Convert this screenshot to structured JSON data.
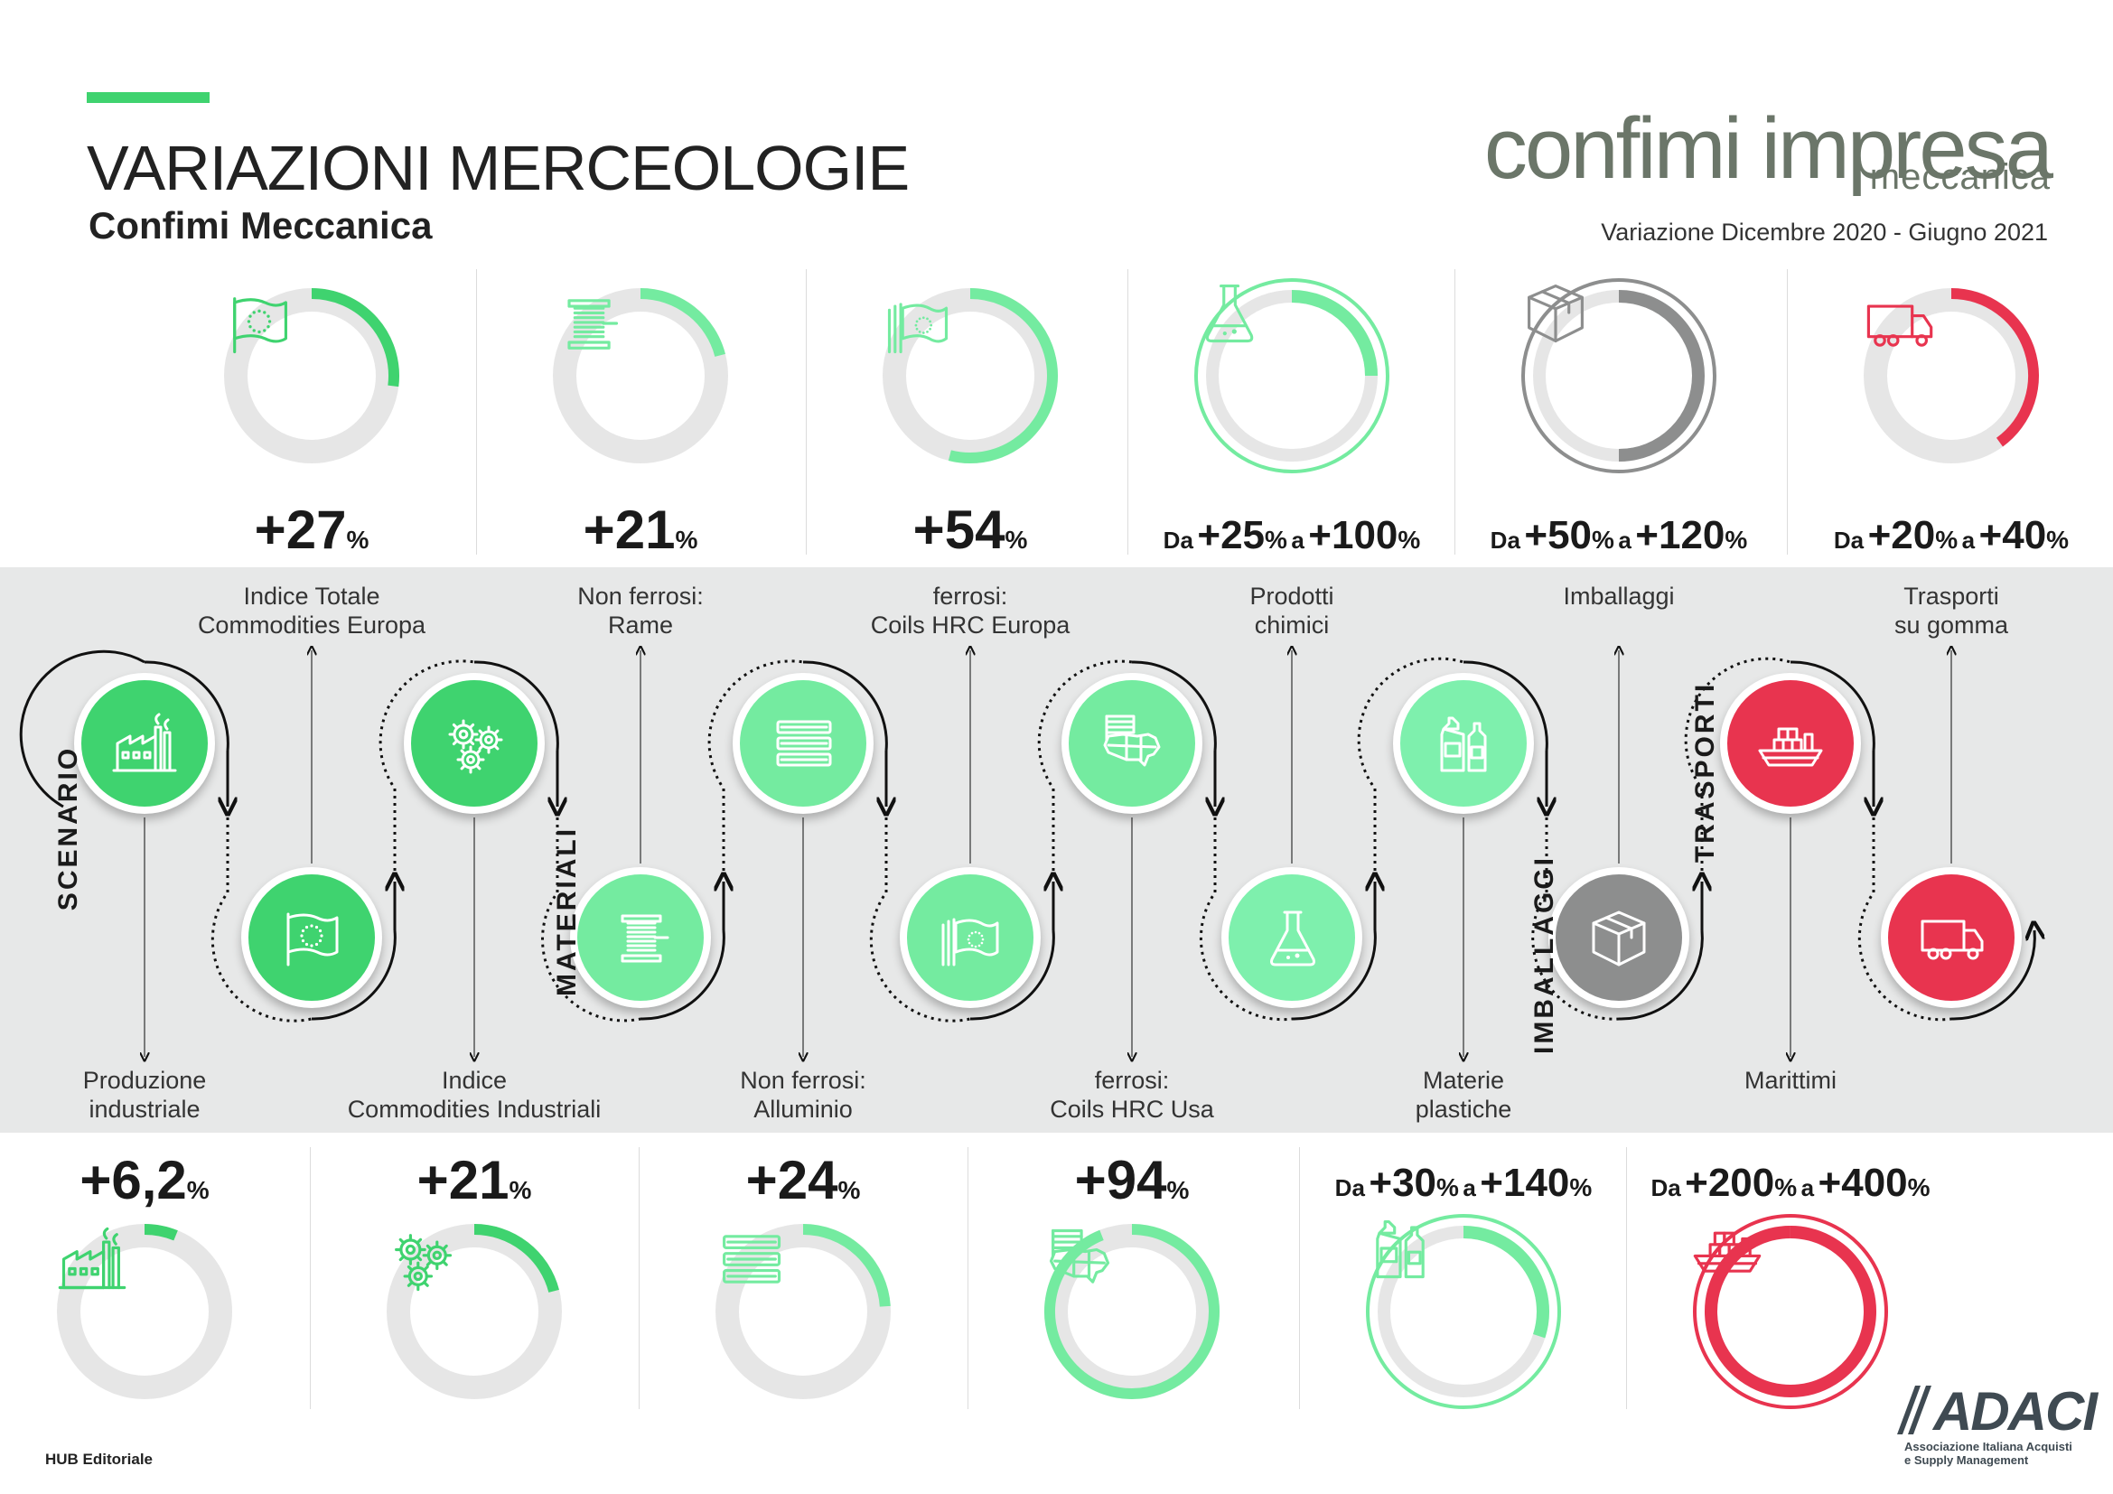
{
  "header": {
    "title": "VARIAZIONI MERCEOLOGIE",
    "subtitle": "Confimi Meccanica",
    "period": "Variazione Dicembre 2020 - Giugno 2021"
  },
  "logo": {
    "main": "confimi impresa",
    "sub": "meccanica"
  },
  "colors": {
    "accent_green": "#3fd36f",
    "light_green": "#74eba0",
    "mint": "#7ef0ad",
    "grey": "#8d8e8e",
    "red": "#e8344f",
    "track": "#e6e6e6"
  },
  "top_gauges": [
    {
      "id": "indice-totale",
      "icon": "eu-flag-icon",
      "prefix": "",
      "value": "+27",
      "unit": "%",
      "mid": "",
      "value2": "",
      "unit2": "",
      "level": 0.27,
      "color": "#3fd36f",
      "style": "thick"
    },
    {
      "id": "rame",
      "icon": "copper-coil-icon",
      "prefix": "",
      "value": "+21",
      "unit": "%",
      "mid": "",
      "value2": "",
      "unit2": "",
      "level": 0.21,
      "color": "#74eba0",
      "style": "thick"
    },
    {
      "id": "coils-europa",
      "icon": "steel-eu-flag-icon",
      "prefix": "",
      "value": "+54",
      "unit": "%",
      "mid": "",
      "value2": "",
      "unit2": "",
      "level": 0.54,
      "color": "#74eba0",
      "style": "thick"
    },
    {
      "id": "prodotti-chimici",
      "icon": "flask-icon",
      "prefix": "Da",
      "value": "+25",
      "unit": "%",
      "mid": "a",
      "value2": "+100",
      "unit2": "%",
      "level": 0.25,
      "level2": 1.0,
      "color": "#74eba0",
      "style": "double"
    },
    {
      "id": "imballaggi",
      "icon": "box-icon",
      "prefix": "Da",
      "value": "+50",
      "unit": "%",
      "mid": "a",
      "value2": "+120",
      "unit2": "%",
      "level": 0.5,
      "level2": 1.0,
      "color": "#8d8e8e",
      "style": "double"
    },
    {
      "id": "trasporti-gomma",
      "icon": "truck-icon",
      "prefix": "Da",
      "value": "+20",
      "unit": "%",
      "mid": "a",
      "value2": "+40",
      "unit2": "%",
      "level": 0.4,
      "color": "#e8344f",
      "style": "thick"
    }
  ],
  "bottom_gauges": [
    {
      "id": "produzione",
      "icon": "factory-icon",
      "prefix": "",
      "value": "+6,2",
      "unit": "%",
      "mid": "",
      "value2": "",
      "unit2": "",
      "level": 0.062,
      "color": "#3fd36f",
      "style": "thick"
    },
    {
      "id": "commodities-industriali",
      "icon": "gears-icon",
      "prefix": "",
      "value": "+21",
      "unit": "%",
      "mid": "",
      "value2": "",
      "unit2": "",
      "level": 0.21,
      "color": "#3fd36f",
      "style": "thick"
    },
    {
      "id": "alluminio",
      "icon": "aluminium-bars-icon",
      "prefix": "",
      "value": "+24",
      "unit": "%",
      "mid": "",
      "value2": "",
      "unit2": "",
      "level": 0.24,
      "color": "#74eba0",
      "style": "thick"
    },
    {
      "id": "coils-usa",
      "icon": "usa-map-icon",
      "prefix": "",
      "value": "+94",
      "unit": "%",
      "mid": "",
      "value2": "",
      "unit2": "",
      "level": 0.94,
      "color": "#74eba0",
      "style": "thick"
    },
    {
      "id": "materie-plastiche",
      "icon": "bottles-icon",
      "prefix": "Da",
      "value": "+30",
      "unit": "%",
      "mid": "a",
      "value2": "+140",
      "unit2": "%",
      "level": 0.3,
      "level2": 1.0,
      "color": "#74eba0",
      "style": "double"
    },
    {
      "id": "marittimi",
      "icon": "ship-icon",
      "prefix": "Da",
      "value": "+200",
      "unit": "%",
      "mid": "a",
      "value2": "+400",
      "unit2": "%",
      "level": 1.0,
      "level2": 1.0,
      "color": "#e8344f",
      "style": "double"
    }
  ],
  "timeline": {
    "sections": [
      "SCENARIO",
      "MATERIALI",
      "IMBALLAGGI",
      "TRASPORTI"
    ],
    "nodes": [
      {
        "id": "produzione",
        "icon": "factory-icon",
        "color": "#3fd36f",
        "label": "Produzione industriale",
        "label_l1": "Produzione",
        "label_l2": "industriale"
      },
      {
        "id": "indice-totale",
        "icon": "eu-flag-icon",
        "color": "#3fd36f",
        "label": "Indice Totale Commodities Europa",
        "label_l1": "Indice Totale",
        "label_l2": "Commodities Europa"
      },
      {
        "id": "commodities-industriali",
        "icon": "gears-icon",
        "color": "#3fd36f",
        "label": "Indice Commodities Industriali",
        "label_l1": "Indice",
        "label_l2": "Commodities Industriali"
      },
      {
        "id": "rame",
        "icon": "copper-coil-icon",
        "color": "#74eba0",
        "label": "Non ferrosi: Rame",
        "label_l1": "Non ferrosi:",
        "label_l2": "Rame"
      },
      {
        "id": "alluminio",
        "icon": "aluminium-bars-icon",
        "color": "#74eba0",
        "label": "Non ferrosi: Alluminio",
        "label_l1": "Non ferrosi:",
        "label_l2": "Alluminio"
      },
      {
        "id": "coils-europa",
        "icon": "steel-eu-flag-icon",
        "color": "#74eba0",
        "label": "ferrosi: Coils HRC Europa",
        "label_l1": "ferrosi:",
        "label_l2": "Coils HRC Europa"
      },
      {
        "id": "coils-usa",
        "icon": "usa-map-icon",
        "color": "#74eba0",
        "label": "ferrosi: Coils HRC Usa",
        "label_l1": "ferrosi:",
        "label_l2": "Coils HRC Usa"
      },
      {
        "id": "prodotti-chimici",
        "icon": "flask-icon",
        "color": "#7ef0ad",
        "label": "Prodotti chimici",
        "label_l1": "Prodotti",
        "label_l2": "chimici"
      },
      {
        "id": "materie-plastiche",
        "icon": "bottles-icon",
        "color": "#7ef0ad",
        "label": "Materie plastiche",
        "label_l1": "Materie",
        "label_l2": "plastiche"
      },
      {
        "id": "imballaggi",
        "icon": "box-icon",
        "color": "#8d8e8e",
        "label": "Imballaggi",
        "label_l1": "Imballaggi",
        "label_l2": ""
      },
      {
        "id": "marittimi",
        "icon": "ship-icon",
        "color": "#e8344f",
        "label": "Marittimi",
        "label_l1": "",
        "label_l2": "Marittimi"
      },
      {
        "id": "trasporti-gomma",
        "icon": "truck-icon",
        "color": "#e8344f",
        "label": "Trasporti su gomma",
        "label_l1": "Trasporti",
        "label_l2": "su gomma"
      }
    ]
  },
  "footer": {
    "publisher": "HUB Editoriale",
    "adaci_name": "ADACI",
    "adaci_line1": "Associazione Italiana Acquisti",
    "adaci_line2": "e Supply Management"
  }
}
